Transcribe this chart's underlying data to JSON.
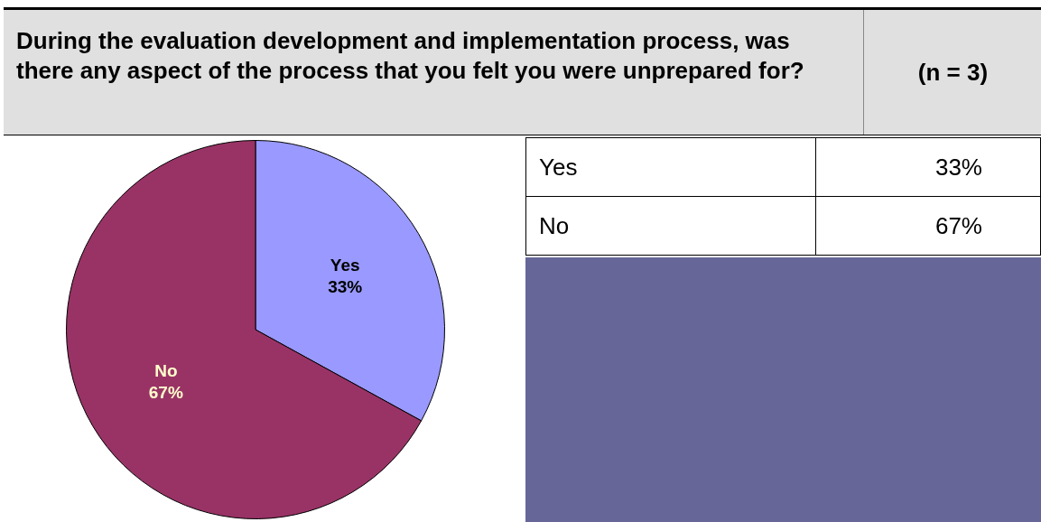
{
  "chart_data": {
    "type": "pie",
    "title": "During the evaluation development and implementation process, was there any aspect of the process that you felt you were unprepared for?",
    "annotations": [
      "(n = 3)"
    ],
    "categories": [
      "Yes",
      "No"
    ],
    "values": [
      33,
      67
    ],
    "colors": [
      "#9999ff",
      "#993366"
    ],
    "value_labels": [
      "33%",
      "67%"
    ]
  }
}
